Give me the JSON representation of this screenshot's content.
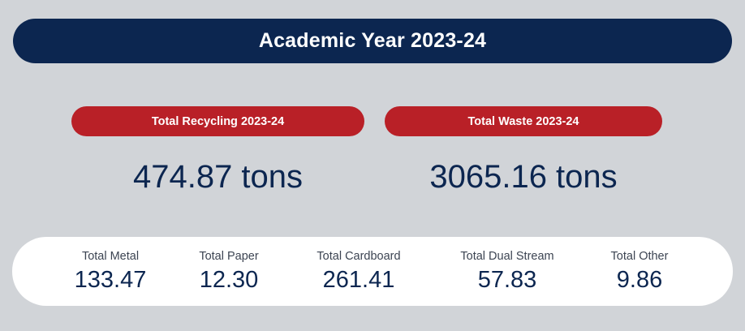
{
  "header": {
    "title": "Academic Year 2023-24"
  },
  "summary": [
    {
      "label": "Total Recycling 2023-24",
      "value": "474.87 tons"
    },
    {
      "label": "Total Waste 2023-24",
      "value": "3065.16 tons"
    }
  ],
  "breakdown": [
    {
      "label": "Total Metal",
      "value": "133.47"
    },
    {
      "label": "Total Paper",
      "value": "12.30"
    },
    {
      "label": "Total Cardboard",
      "value": "261.41"
    },
    {
      "label": "Total Dual Stream",
      "value": "57.83"
    },
    {
      "label": "Total Other",
      "value": "9.86"
    }
  ],
  "colors": {
    "background": "#d1d4d8",
    "navy": "#0c2650",
    "red": "#b92027",
    "card": "#ffffff"
  }
}
